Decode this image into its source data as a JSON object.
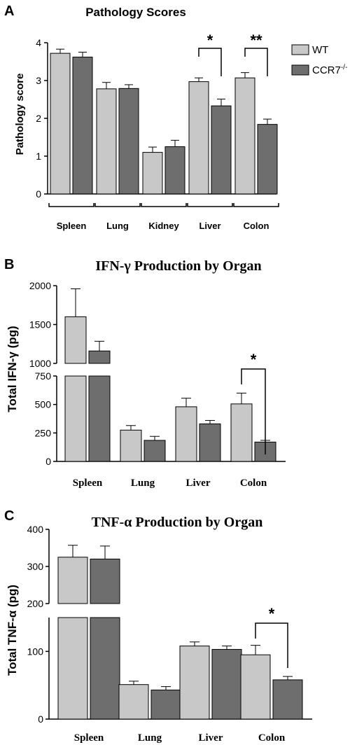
{
  "colors": {
    "wt": "#c8c8c8",
    "ccr7": "#6e6e6e",
    "axis": "#000000"
  },
  "legend": [
    {
      "label": "WT",
      "color": "#c8c8c8"
    },
    {
      "label": "CCR7",
      "sup": "-/-",
      "color": "#6e6e6e"
    }
  ],
  "chart_data": [
    {
      "panel": "A",
      "type": "bar",
      "title": "Pathology Scores",
      "ylabel": "Pathology score",
      "ylim": [
        0,
        4
      ],
      "yticks": [
        "0",
        "1",
        "2",
        "3",
        "4"
      ],
      "categories": [
        "Spleen",
        "Lung",
        "Kidney",
        "Liver",
        "Colon"
      ],
      "series": [
        {
          "name": "WT",
          "values": [
            3.72,
            2.78,
            1.1,
            2.97,
            3.07
          ],
          "errors": [
            0.11,
            0.17,
            0.14,
            0.1,
            0.14
          ]
        },
        {
          "name": "CCR7-/-",
          "values": [
            3.62,
            2.79,
            1.25,
            2.33,
            1.84
          ],
          "errors": [
            0.13,
            0.1,
            0.17,
            0.18,
            0.14
          ]
        }
      ],
      "significance": [
        {
          "category": "Liver",
          "label": "*"
        },
        {
          "category": "Colon",
          "label": "**"
        }
      ]
    },
    {
      "panel": "B",
      "type": "bar",
      "title": "IFN-γ Production by Organ",
      "ylabel": "Total IFN-γ (pg)",
      "axis_break": [
        750,
        1000
      ],
      "ylim": [
        0,
        2000
      ],
      "yticks_lower": [
        "0",
        "250",
        "500",
        "750"
      ],
      "yticks_upper": [
        "1000",
        "1500",
        "2000"
      ],
      "categories": [
        "Spleen",
        "Lung",
        "Liver",
        "Colon"
      ],
      "series": [
        {
          "name": "WT",
          "values": [
            1600,
            275,
            480,
            505
          ],
          "errors": [
            360,
            40,
            75,
            95
          ]
        },
        {
          "name": "CCR7-/-",
          "values": [
            1160,
            185,
            330,
            170
          ],
          "errors": [
            125,
            35,
            30,
            15
          ]
        }
      ],
      "significance": [
        {
          "category": "Colon",
          "label": "*"
        }
      ]
    },
    {
      "panel": "C",
      "type": "bar",
      "title": "TNF-α Production by Organ",
      "ylabel": "Total TNF-α (pg)",
      "axis_break": [
        150,
        200
      ],
      "ylim": [
        0,
        400
      ],
      "yticks_lower": [
        "0",
        "100"
      ],
      "yticks_upper": [
        "200",
        "300",
        "400"
      ],
      "categories": [
        "Spleen",
        "Lung",
        "Liver",
        "Colon"
      ],
      "series": [
        {
          "name": "WT",
          "values": [
            325,
            51,
            108,
            95
          ],
          "errors": [
            32,
            5,
            6,
            14
          ]
        },
        {
          "name": "CCR7-/-",
          "values": [
            320,
            43,
            103,
            58
          ],
          "errors": [
            35,
            5,
            5,
            5
          ]
        }
      ],
      "significance": [
        {
          "category": "Colon",
          "label": "*"
        }
      ]
    }
  ]
}
